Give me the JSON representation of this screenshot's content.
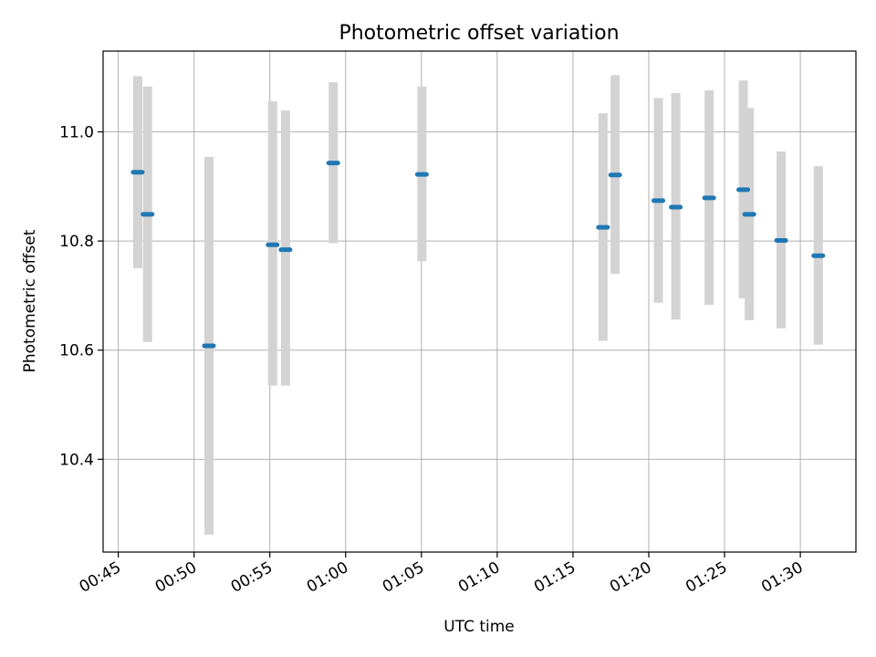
{
  "chart_data": {
    "type": "errorbar",
    "title": "Photometric offset variation",
    "xlabel": "UTC time",
    "ylabel": "Photometric offset",
    "xlim": [
      "00:44:00",
      "01:33:40"
    ],
    "ylim": [
      10.23,
      11.148
    ],
    "grid": true,
    "x_ticks": [
      "00:45",
      "00:50",
      "00:55",
      "01:00",
      "01:05",
      "01:10",
      "01:15",
      "01:20",
      "01:25",
      "01:30"
    ],
    "y_ticks": [
      10.4,
      10.6,
      10.8,
      11.0
    ],
    "colors": {
      "marker": "#1f77b4",
      "errorbar": "#d3d3d3",
      "grid": "#b0b0b0"
    },
    "points": [
      {
        "t": "00:46:17",
        "y": 10.926,
        "lo": 10.75,
        "hi": 11.102
      },
      {
        "t": "00:46:56",
        "y": 10.849,
        "lo": 10.615,
        "hi": 11.083
      },
      {
        "t": "00:50:59",
        "y": 10.608,
        "lo": 10.262,
        "hi": 10.954
      },
      {
        "t": "00:55:11",
        "y": 10.793,
        "lo": 10.535,
        "hi": 11.056
      },
      {
        "t": "00:56:02",
        "y": 10.784,
        "lo": 10.535,
        "hi": 11.039
      },
      {
        "t": "00:59:11",
        "y": 10.943,
        "lo": 10.796,
        "hi": 11.091
      },
      {
        "t": "01:05:02",
        "y": 10.922,
        "lo": 10.763,
        "hi": 11.083
      },
      {
        "t": "01:16:59",
        "y": 10.825,
        "lo": 10.617,
        "hi": 11.034
      },
      {
        "t": "01:17:47",
        "y": 10.921,
        "lo": 10.74,
        "hi": 11.104
      },
      {
        "t": "01:20:38",
        "y": 10.874,
        "lo": 10.687,
        "hi": 11.062
      },
      {
        "t": "01:21:47",
        "y": 10.862,
        "lo": 10.656,
        "hi": 11.071
      },
      {
        "t": "01:23:59",
        "y": 10.879,
        "lo": 10.683,
        "hi": 11.076
      },
      {
        "t": "01:26:14",
        "y": 10.894,
        "lo": 10.695,
        "hi": 11.094
      },
      {
        "t": "01:26:38",
        "y": 10.849,
        "lo": 10.655,
        "hi": 11.044
      },
      {
        "t": "01:28:44",
        "y": 10.801,
        "lo": 10.64,
        "hi": 10.964
      },
      {
        "t": "01:31:11",
        "y": 10.773,
        "lo": 10.61,
        "hi": 10.937
      }
    ]
  }
}
